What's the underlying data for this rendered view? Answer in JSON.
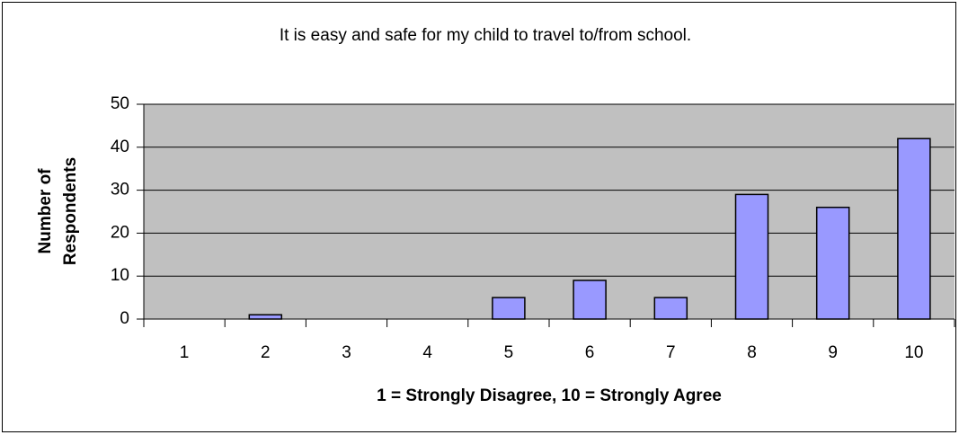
{
  "chart_data": {
    "type": "bar",
    "title": "It is easy and safe for my child to travel to/from school.",
    "xlabel": "1 = Strongly Disagree, 10 = Strongly Agree",
    "ylabel": [
      "Number of",
      "Respondents"
    ],
    "categories": [
      "1",
      "2",
      "3",
      "4",
      "5",
      "6",
      "7",
      "8",
      "9",
      "10"
    ],
    "values": [
      0,
      1,
      0,
      0,
      5,
      9,
      5,
      29,
      26,
      42
    ],
    "color": "#9999ff",
    "ylim": [
      0,
      50
    ],
    "yticks": [
      0,
      10,
      20,
      30,
      40,
      50
    ],
    "grid": true
  }
}
